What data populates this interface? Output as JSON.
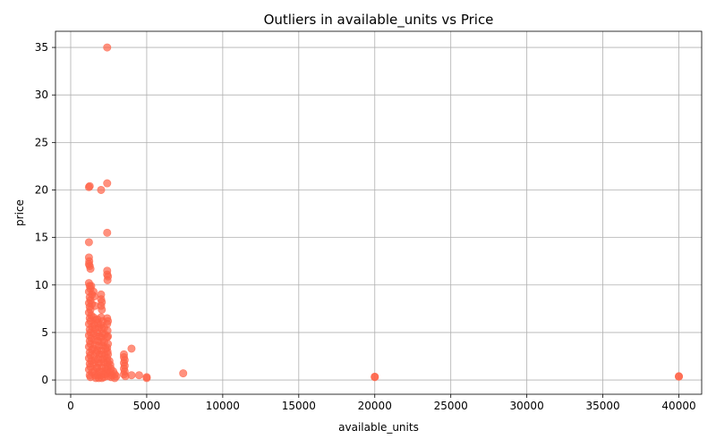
{
  "chart_data": {
    "type": "scatter",
    "title": "Outliers in available_units vs Price",
    "xlabel": "available_units",
    "ylabel": "price",
    "xlim": [
      -1000,
      41500
    ],
    "ylim": [
      -1.5,
      36.7
    ],
    "xticks": [
      0,
      5000,
      10000,
      15000,
      20000,
      25000,
      30000,
      35000,
      40000
    ],
    "yticks": [
      0,
      5,
      10,
      15,
      20,
      25,
      30,
      35
    ],
    "grid": true,
    "marker_color": "#FF6347",
    "marker_alpha": 0.7,
    "points": [
      [
        2400,
        35.0
      ],
      [
        1200,
        20.3
      ],
      [
        1250,
        20.4
      ],
      [
        2000,
        20.0
      ],
      [
        2400,
        20.7
      ],
      [
        1200,
        14.5
      ],
      [
        2400,
        15.5
      ],
      [
        1200,
        12.9
      ],
      [
        1220,
        12.5
      ],
      [
        1250,
        12.0
      ],
      [
        1300,
        11.7
      ],
      [
        1200,
        12.2
      ],
      [
        2400,
        11.5
      ],
      [
        2400,
        11.1
      ],
      [
        2450,
        10.9
      ],
      [
        2420,
        10.5
      ],
      [
        1200,
        10.2
      ],
      [
        1250,
        9.9
      ],
      [
        1300,
        9.6
      ],
      [
        1350,
        9.9
      ],
      [
        1200,
        9.3
      ],
      [
        1400,
        9.0
      ],
      [
        1250,
        8.7
      ],
      [
        1300,
        8.4
      ],
      [
        1200,
        8.1
      ],
      [
        1400,
        8.0
      ],
      [
        1250,
        7.7
      ],
      [
        1300,
        7.4
      ],
      [
        1200,
        7.1
      ],
      [
        1350,
        6.8
      ],
      [
        1250,
        6.5
      ],
      [
        1300,
        6.2
      ],
      [
        1200,
        5.9
      ],
      [
        1400,
        5.6
      ],
      [
        1250,
        5.3
      ],
      [
        1300,
        5.0
      ],
      [
        1200,
        4.7
      ],
      [
        1350,
        4.4
      ],
      [
        1250,
        4.1
      ],
      [
        1300,
        3.8
      ],
      [
        1200,
        3.5
      ],
      [
        1400,
        3.2
      ],
      [
        1250,
        2.9
      ],
      [
        1300,
        2.6
      ],
      [
        1200,
        2.3
      ],
      [
        1350,
        2.0
      ],
      [
        1250,
        1.7
      ],
      [
        1300,
        1.4
      ],
      [
        1200,
        1.1
      ],
      [
        1400,
        0.8
      ],
      [
        1250,
        0.5
      ],
      [
        1300,
        0.3
      ],
      [
        1500,
        9.3
      ],
      [
        1550,
        8.8
      ],
      [
        1600,
        7.8
      ],
      [
        1500,
        6.6
      ],
      [
        1650,
        6.3
      ],
      [
        1550,
        5.8
      ],
      [
        1600,
        5.4
      ],
      [
        1500,
        4.9
      ],
      [
        1700,
        4.6
      ],
      [
        1550,
        4.2
      ],
      [
        1600,
        3.7
      ],
      [
        1500,
        3.3
      ],
      [
        1700,
        2.9
      ],
      [
        1550,
        2.5
      ],
      [
        1600,
        2.1
      ],
      [
        1500,
        1.7
      ],
      [
        1700,
        1.3
      ],
      [
        1550,
        0.9
      ],
      [
        1600,
        0.5
      ],
      [
        1650,
        0.2
      ],
      [
        1750,
        6.4
      ],
      [
        1800,
        6.0
      ],
      [
        1850,
        5.5
      ],
      [
        1750,
        5.0
      ],
      [
        1900,
        4.6
      ],
      [
        1800,
        4.1
      ],
      [
        1850,
        3.6
      ],
      [
        1750,
        3.1
      ],
      [
        1900,
        2.7
      ],
      [
        1800,
        2.2
      ],
      [
        1850,
        1.8
      ],
      [
        1750,
        1.3
      ],
      [
        1900,
        0.9
      ],
      [
        1800,
        0.5
      ],
      [
        1850,
        0.2
      ],
      [
        2000,
        9.0
      ],
      [
        2000,
        8.5
      ],
      [
        2050,
        8.2
      ],
      [
        2000,
        7.8
      ],
      [
        2050,
        7.4
      ],
      [
        2000,
        6.6
      ],
      [
        2100,
        6.2
      ],
      [
        2000,
        5.8
      ],
      [
        2050,
        5.4
      ],
      [
        2100,
        4.9
      ],
      [
        2000,
        4.5
      ],
      [
        2050,
        4.0
      ],
      [
        2100,
        3.6
      ],
      [
        2000,
        3.1
      ],
      [
        2050,
        2.7
      ],
      [
        2100,
        2.2
      ],
      [
        2000,
        1.8
      ],
      [
        2050,
        1.3
      ],
      [
        2100,
        0.9
      ],
      [
        2000,
        0.5
      ],
      [
        2050,
        0.2
      ],
      [
        2200,
        5.5
      ],
      [
        2250,
        4.8
      ],
      [
        2200,
        4.0
      ],
      [
        2300,
        3.3
      ],
      [
        2250,
        2.6
      ],
      [
        2200,
        1.9
      ],
      [
        2300,
        1.2
      ],
      [
        2250,
        0.6
      ],
      [
        2200,
        0.3
      ],
      [
        2400,
        6.5
      ],
      [
        2450,
        6.2
      ],
      [
        2400,
        5.9
      ],
      [
        2420,
        5.2
      ],
      [
        2450,
        4.6
      ],
      [
        2400,
        4.5
      ],
      [
        2450,
        3.8
      ],
      [
        2400,
        3.4
      ],
      [
        2420,
        3.0
      ],
      [
        2450,
        2.7
      ],
      [
        2400,
        2.3
      ],
      [
        2420,
        1.9
      ],
      [
        2450,
        1.5
      ],
      [
        2400,
        1.1
      ],
      [
        2420,
        0.7
      ],
      [
        2450,
        0.4
      ],
      [
        2550,
        2.0
      ],
      [
        2600,
        1.6
      ],
      [
        2650,
        1.2
      ],
      [
        2600,
        0.8
      ],
      [
        2700,
        0.5
      ],
      [
        2650,
        0.3
      ],
      [
        2800,
        0.9
      ],
      [
        2900,
        0.6
      ],
      [
        2900,
        0.2
      ],
      [
        3000,
        0.4
      ],
      [
        3500,
        2.7
      ],
      [
        3500,
        2.4
      ],
      [
        3550,
        2.1
      ],
      [
        3500,
        1.8
      ],
      [
        3550,
        1.5
      ],
      [
        3500,
        1.2
      ],
      [
        3550,
        0.9
      ],
      [
        3500,
        0.6
      ],
      [
        3600,
        0.4
      ],
      [
        4000,
        3.3
      ],
      [
        4000,
        0.5
      ],
      [
        4500,
        0.5
      ],
      [
        5000,
        0.3
      ],
      [
        5000,
        0.2
      ],
      [
        7400,
        0.7
      ],
      [
        20000,
        0.35
      ],
      [
        20000,
        0.3
      ],
      [
        40000,
        0.4
      ],
      [
        40000,
        0.35
      ]
    ]
  }
}
